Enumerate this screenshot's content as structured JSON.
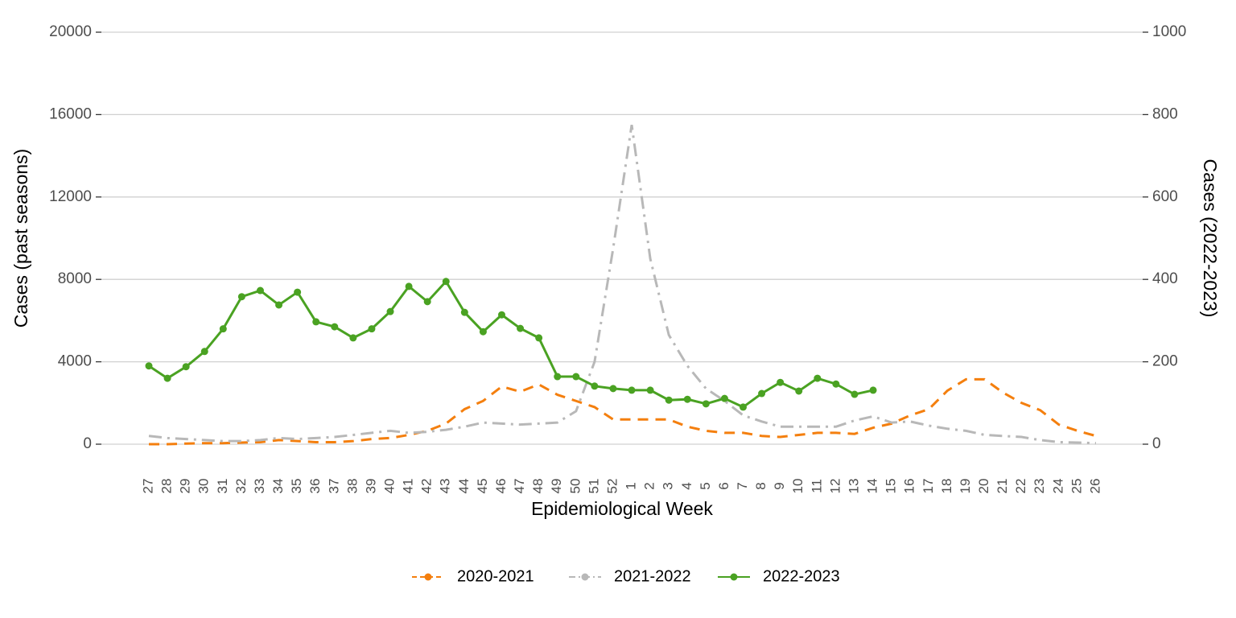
{
  "chart_data": {
    "type": "line",
    "x_label": "Epidemiological Week",
    "y_label": "Cases (past seasons)",
    "y2_label": "Cases (2022-2023)",
    "categories": [
      "27",
      "28",
      "29",
      "30",
      "31",
      "32",
      "33",
      "34",
      "35",
      "36",
      "37",
      "38",
      "39",
      "40",
      "41",
      "42",
      "43",
      "44",
      "45",
      "46",
      "47",
      "48",
      "49",
      "50",
      "51",
      "52",
      "1",
      "2",
      "3",
      "4",
      "5",
      "6",
      "7",
      "8",
      "9",
      "10",
      "11",
      "12",
      "13",
      "14",
      "15",
      "16",
      "17",
      "18",
      "19",
      "20",
      "21",
      "22",
      "23",
      "24",
      "25",
      "26"
    ],
    "ylim": [
      0,
      20000
    ],
    "yticks": [
      0,
      4000,
      8000,
      12000,
      16000,
      20000
    ],
    "y2lim": [
      0,
      1000
    ],
    "y2ticks": [
      0,
      200,
      400,
      600,
      800,
      1000
    ],
    "grid": true,
    "legend": "bottom",
    "series": [
      {
        "name": "2020-2021",
        "color": "#f47f0e",
        "values": [
          0,
          0,
          30,
          50,
          50,
          80,
          100,
          200,
          150,
          100,
          100,
          150,
          250,
          300,
          450,
          650,
          1000,
          1700,
          2100,
          2800,
          2550,
          2900,
          2400,
          2100,
          1800,
          1200,
          1200,
          1200,
          1200,
          850,
          650,
          550,
          550,
          400,
          350,
          450,
          550,
          550,
          500,
          800,
          1000,
          1400,
          1700,
          2600,
          3150,
          3150,
          2500,
          2000,
          1650,
          950,
          650,
          400
        ]
      },
      {
        "name": "2021-2022",
        "color": "#b8b8b8",
        "values": [
          400,
          300,
          250,
          200,
          150,
          150,
          200,
          300,
          250,
          300,
          350,
          450,
          550,
          650,
          550,
          600,
          700,
          850,
          1050,
          1000,
          950,
          1000,
          1050,
          1600,
          4000,
          9500,
          15500,
          9000,
          5300,
          3800,
          2700,
          2100,
          1400,
          1100,
          850,
          850,
          850,
          850,
          1150,
          1350,
          1050,
          1100,
          900,
          750,
          650,
          450,
          400,
          350,
          200,
          100,
          80,
          50
        ]
      },
      {
        "name": "2022-2023",
        "color": "#4aa222",
        "axis": "y2",
        "markers": true,
        "values": [
          190,
          160,
          188,
          225,
          280,
          358,
          373,
          338,
          369,
          297,
          285,
          258,
          280,
          322,
          383,
          346,
          395,
          320,
          273,
          314,
          281,
          258,
          164,
          164,
          141,
          135,
          131,
          131,
          107,
          109,
          98,
          111,
          90,
          123,
          150,
          129,
          160,
          146,
          121,
          131,
          null,
          null,
          null,
          null,
          null,
          null,
          null,
          null,
          null,
          null,
          null,
          null
        ]
      }
    ]
  }
}
